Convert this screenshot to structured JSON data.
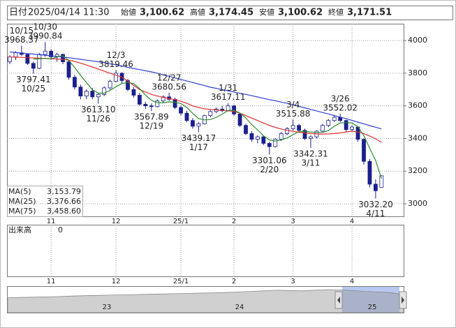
{
  "header": {
    "date_label": "日付",
    "datetime": "2025/04/14 11:30",
    "items": [
      {
        "name": "始値",
        "value": 3100.62,
        "label": "3,100.62",
        "color": "#222222"
      },
      {
        "name": "高値",
        "value": 3174.45,
        "label": "3,174.45",
        "color": "#e02020"
      },
      {
        "name": "安値",
        "value": 3100.62,
        "label": "3,100.62",
        "color": "#208020"
      },
      {
        "name": "終値",
        "value": 3171.51,
        "label": "3,171.51",
        "color": "#222222"
      }
    ]
  },
  "chart_data": {
    "type": "candlestick",
    "up_color": "#ffffff",
    "down_color": "#1a1f8c",
    "ylim": [
      2923,
      4103
    ],
    "yticks": [
      3000,
      3200,
      3400,
      3600,
      3800,
      4000
    ],
    "grid": true,
    "categories": [
      null,
      null,
      null,
      null,
      null,
      null,
      null,
      "11",
      null,
      null,
      null,
      null,
      null,
      null,
      null,
      null,
      null,
      null,
      "12",
      null,
      null,
      null,
      null,
      null,
      null,
      null,
      null,
      null,
      null,
      "25/1",
      null,
      null,
      null,
      null,
      null,
      null,
      null,
      null,
      "2",
      null,
      null,
      null,
      null,
      null,
      null,
      null,
      null,
      null,
      "3",
      null,
      null,
      null,
      null,
      null,
      null,
      null,
      null,
      null,
      "4",
      null,
      null,
      null,
      null,
      null
    ],
    "candles": [
      [
        3870,
        3910,
        3855,
        3900
      ],
      [
        3900,
        3935,
        3880,
        3925
      ],
      [
        3925,
        3968.37,
        3905,
        3915
      ],
      [
        3915,
        3920,
        3850,
        3860
      ],
      [
        3860,
        3870,
        3797.41,
        3830
      ],
      [
        3830,
        3925,
        3825,
        3915
      ],
      [
        3915,
        3990.84,
        3900,
        3935
      ],
      [
        3935,
        3945,
        3880,
        3900
      ],
      [
        3900,
        3925,
        3870,
        3915
      ],
      [
        3915,
        3920,
        3855,
        3870
      ],
      [
        3870,
        3880,
        3760,
        3775
      ],
      [
        3775,
        3790,
        3700,
        3715
      ],
      [
        3715,
        3730,
        3640,
        3660
      ],
      [
        3660,
        3700,
        3640,
        3690
      ],
      [
        3690,
        3710,
        3640,
        3655
      ],
      [
        3655,
        3680,
        3613.1,
        3670
      ],
      [
        3670,
        3720,
        3660,
        3710
      ],
      [
        3710,
        3760,
        3700,
        3750
      ],
      [
        3750,
        3819.46,
        3745,
        3800
      ],
      [
        3800,
        3805,
        3740,
        3755
      ],
      [
        3755,
        3765,
        3690,
        3700
      ],
      [
        3700,
        3715,
        3650,
        3665
      ],
      [
        3665,
        3680,
        3600,
        3610
      ],
      [
        3610,
        3625,
        3580,
        3600
      ],
      [
        3600,
        3615,
        3567.89,
        3595
      ],
      [
        3595,
        3640,
        3590,
        3630
      ],
      [
        3630,
        3665,
        3620,
        3655
      ],
      [
        3655,
        3680.56,
        3630,
        3640
      ],
      [
        3640,
        3650,
        3580,
        3590
      ],
      [
        3590,
        3600,
        3540,
        3555
      ],
      [
        3555,
        3570,
        3500,
        3510
      ],
      [
        3510,
        3525,
        3460,
        3475
      ],
      [
        3475,
        3500,
        3439.17,
        3490
      ],
      [
        3490,
        3545,
        3485,
        3540
      ],
      [
        3540,
        3575,
        3530,
        3565
      ],
      [
        3565,
        3590,
        3555,
        3580
      ],
      [
        3580,
        3600,
        3560,
        3570
      ],
      [
        3570,
        3617.11,
        3565,
        3600
      ],
      [
        3600,
        3605,
        3540,
        3550
      ],
      [
        3550,
        3555,
        3470,
        3480
      ],
      [
        3480,
        3490,
        3420,
        3430
      ],
      [
        3430,
        3445,
        3380,
        3395
      ],
      [
        3395,
        3420,
        3370,
        3410
      ],
      [
        3410,
        3415,
        3360,
        3370
      ],
      [
        3370,
        3380,
        3301.06,
        3350
      ],
      [
        3350,
        3400,
        3345,
        3395
      ],
      [
        3395,
        3440,
        3385,
        3430
      ],
      [
        3430,
        3470,
        3420,
        3460
      ],
      [
        3460,
        3515.88,
        3450,
        3480
      ],
      [
        3480,
        3490,
        3440,
        3450
      ],
      [
        3450,
        3460,
        3390,
        3400
      ],
      [
        3400,
        3420,
        3342.31,
        3410
      ],
      [
        3410,
        3450,
        3400,
        3445
      ],
      [
        3445,
        3490,
        3440,
        3480
      ],
      [
        3480,
        3520,
        3470,
        3510
      ],
      [
        3510,
        3545,
        3500,
        3530
      ],
      [
        3530,
        3552.02,
        3500,
        3510
      ],
      [
        3510,
        3515,
        3440,
        3455
      ],
      [
        3455,
        3480,
        3440,
        3470
      ],
      [
        3470,
        3475,
        3380,
        3395
      ],
      [
        3395,
        3400,
        3240,
        3260
      ],
      [
        3260,
        3275,
        3100,
        3120
      ],
      [
        3120,
        3150,
        3032.2,
        3080
      ],
      [
        3100.62,
        3174.45,
        3100.62,
        3171.51
      ]
    ],
    "series": [
      {
        "name": "MA(5)",
        "color": "#2e8b2e",
        "legend_value": {
          "value": 3153.79,
          "label": "3,153.79"
        },
        "values": [
          null,
          null,
          null,
          null,
          3886,
          3889,
          3891,
          3888,
          3899,
          3907,
          3878,
          3835,
          3787,
          3742,
          3699,
          3678,
          3677,
          3695,
          3717,
          3737,
          3743,
          3736,
          3706,
          3666,
          3634,
          3620,
          3618,
          3624,
          3622,
          3614,
          3590,
          3554,
          3522,
          3514,
          3516,
          3530,
          3549,
          3571,
          3573,
          3556,
          3526,
          3485,
          3453,
          3417,
          3391,
          3384,
          3391,
          3403,
          3423,
          3443,
          3444,
          3440,
          3437,
          3437,
          3449,
          3475,
          3495,
          3497,
          3495,
          3472,
          3418,
          3340,
          3265,
          3153.79
        ]
      },
      {
        "name": "MA(25)",
        "color": "#e03030",
        "legend_value": {
          "value": 3376.66,
          "label": "3,376.66"
        },
        "values": [
          3900,
          3898,
          3897,
          3895,
          3893,
          3892,
          3890,
          3889,
          3887,
          3885,
          3880,
          3872,
          3862,
          3850,
          3838,
          3825,
          3812,
          3800,
          3788,
          3776,
          3752,
          3725,
          3700,
          3685,
          3670,
          3660,
          3652,
          3645,
          3638,
          3628,
          3615,
          3600,
          3590,
          3582,
          3578,
          3575,
          3572,
          3570,
          3565,
          3555,
          3540,
          3525,
          3510,
          3495,
          3480,
          3468,
          3458,
          3450,
          3444,
          3438,
          3434,
          3430,
          3428,
          3427,
          3428,
          3430,
          3434,
          3440,
          3445,
          3440,
          3430,
          3415,
          3398,
          3376.66
        ]
      },
      {
        "name": "MA(75)",
        "color": "#3040d0",
        "legend_value": {
          "value": 3458.6,
          "label": "3,458.60"
        },
        "values": [
          3930,
          3927,
          3924,
          3920,
          3917,
          3913,
          3910,
          3906,
          3903,
          3899,
          3895,
          3890,
          3885,
          3880,
          3875,
          3870,
          3865,
          3858,
          3851,
          3844,
          3836,
          3829,
          3822,
          3815,
          3808,
          3800,
          3790,
          3781,
          3771,
          3762,
          3752,
          3743,
          3733,
          3724,
          3714,
          3707,
          3699,
          3692,
          3685,
          3677,
          3670,
          3662,
          3654,
          3646,
          3638,
          3631,
          3623,
          3615,
          3607,
          3597,
          3588,
          3578,
          3569,
          3559,
          3550,
          3540,
          3531,
          3521,
          3511,
          3500,
          3490,
          3479,
          3469,
          3458.6
        ]
      }
    ],
    "annotations": [
      {
        "date": "10/15",
        "value": 3968.37
      },
      {
        "date": "10/30",
        "value": 3990.84
      },
      {
        "date": "10/25",
        "value": 3797.41
      },
      {
        "date": "11/26",
        "value": 3613.1,
        "label": "3613.10"
      },
      {
        "date": "12/3",
        "value": 3819.46
      },
      {
        "date": "12/19",
        "value": 3567.89
      },
      {
        "date": "12/27",
        "value": 3680.56
      },
      {
        "date": "1/17",
        "value": 3439.17
      },
      {
        "date": "1/31",
        "value": 3617.11
      },
      {
        "date": "2/20",
        "value": 3301.06
      },
      {
        "date": "3/4",
        "value": 3515.88
      },
      {
        "date": "3/11",
        "value": 3342.31
      },
      {
        "date": "3/26",
        "value": 3552.02
      },
      {
        "date": "4/11",
        "value": 3032.2,
        "label": "3032.20"
      }
    ],
    "volume_panel": {
      "label": "出来高",
      "value": 0
    },
    "navigator": {
      "labels": [
        "23",
        "24",
        "25"
      ],
      "ylim": [
        0,
        4500
      ],
      "values": [
        2600,
        2650,
        2700,
        2750,
        2800,
        2900,
        2950,
        3000,
        3050,
        3100,
        3150,
        3200,
        3250,
        3300,
        3350,
        3400,
        3450,
        3500,
        3600,
        3700,
        3800,
        3900,
        3850,
        3800,
        3900,
        4000,
        3950,
        3850,
        3700,
        3600,
        3500,
        3100
      ]
    }
  }
}
